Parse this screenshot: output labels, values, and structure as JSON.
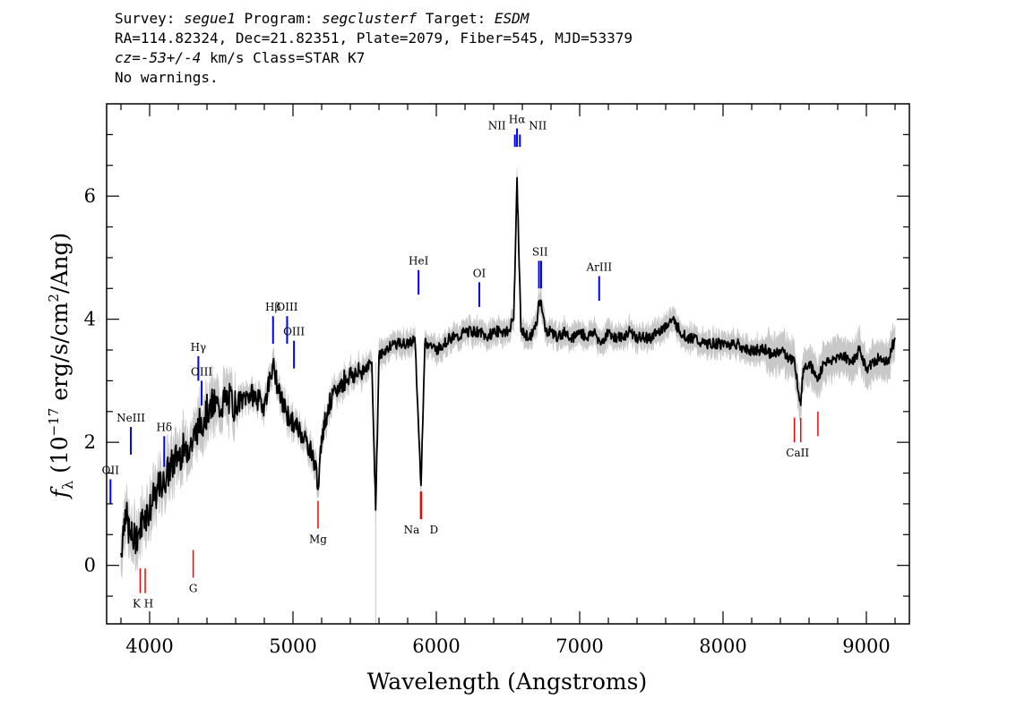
{
  "header": {
    "line1": {
      "survey_label": "Survey: ",
      "survey": "segue1",
      "program_label": " Program: ",
      "program": "segclusterf",
      "target_label": " Target: ",
      "target": "ESDM"
    },
    "line2": "RA=114.82324, Dec=21.82351, Plate=2079, Fiber=545, MJD=53379",
    "line3": {
      "cz": "cz=-53+/-4",
      "rest": " km/s Class=STAR K7"
    },
    "line4": "No warnings."
  },
  "chart_data": {
    "type": "line",
    "title": "",
    "xlabel": "Wavelength (Angstroms)",
    "ylabel": "f_λ (10^-17 erg/s/cm^2/Ang)",
    "ylabel_parts": {
      "f": "f",
      "sub": "λ",
      "pre": " (10",
      "exp1": "−17",
      "mid": " erg/s/cm",
      "exp2": "2",
      "post": "/Ang)"
    },
    "xlim": [
      3700,
      9300
    ],
    "ylim": [
      -0.95,
      7.5
    ],
    "x_ticks": [
      4000,
      5000,
      6000,
      7000,
      8000,
      9000
    ],
    "x_tick_labels": [
      "4000",
      "5000",
      "6000",
      "7000",
      "8000",
      "9000"
    ],
    "y_ticks": [
      0,
      2,
      4,
      6
    ],
    "y_tick_labels": [
      "0",
      "2",
      "4",
      "6"
    ],
    "x_minor_step": 200,
    "y_minor_step": 0.5,
    "grid": false,
    "colors": {
      "flux": "#000000",
      "error_band": "#c8c8c8",
      "emission": "#0000ff",
      "absorption": "#ff0000"
    },
    "series": [
      {
        "role": "flux",
        "x": [
          3800,
          3830,
          3860,
          3890,
          3930,
          3960,
          4000,
          4050,
          4100,
          4150,
          4200,
          4250,
          4300,
          4340,
          4380,
          4420,
          4480,
          4550,
          4600,
          4650,
          4700,
          4750,
          4800,
          4861,
          4900,
          4950,
          5000,
          5050,
          5100,
          5150,
          5180,
          5200,
          5250,
          5300,
          5350,
          5400,
          5450,
          5500,
          5550,
          5577,
          5600,
          5650,
          5700,
          5750,
          5800,
          5850,
          5893,
          5920,
          5950,
          6000,
          6050,
          6100,
          6150,
          6200,
          6250,
          6300,
          6350,
          6400,
          6450,
          6500,
          6540,
          6563,
          6590,
          6650,
          6700,
          6716,
          6731,
          6760,
          6800,
          6850,
          6900,
          6950,
          7000,
          7050,
          7100,
          7150,
          7200,
          7250,
          7300,
          7350,
          7400,
          7450,
          7500,
          7550,
          7600,
          7650,
          7700,
          7750,
          7800,
          7850,
          7900,
          7950,
          8000,
          8050,
          8100,
          8150,
          8200,
          8250,
          8300,
          8350,
          8400,
          8450,
          8500,
          8542,
          8560,
          8600,
          8662,
          8700,
          8750,
          8800,
          8850,
          8900,
          8950,
          9000,
          9050,
          9100,
          9150,
          9200
        ],
        "y": [
          0.2,
          0.9,
          0.5,
          0.4,
          0.6,
          0.8,
          0.9,
          1.2,
          1.4,
          1.6,
          1.8,
          1.9,
          2.0,
          2.3,
          2.4,
          2.6,
          2.6,
          2.7,
          2.6,
          2.7,
          2.8,
          2.7,
          2.6,
          3.3,
          2.8,
          2.5,
          2.3,
          2.2,
          2.0,
          1.7,
          1.3,
          2.1,
          2.6,
          2.8,
          3.0,
          3.1,
          3.1,
          3.2,
          3.3,
          0.9,
          3.4,
          3.5,
          3.6,
          3.6,
          3.6,
          3.7,
          1.3,
          3.6,
          3.6,
          3.5,
          3.6,
          3.7,
          3.7,
          3.8,
          3.8,
          3.8,
          3.7,
          3.8,
          3.8,
          3.8,
          4.0,
          6.3,
          3.8,
          3.7,
          3.9,
          4.3,
          4.3,
          3.8,
          3.8,
          3.7,
          3.8,
          3.7,
          3.8,
          3.7,
          3.8,
          3.6,
          3.8,
          3.7,
          3.7,
          3.8,
          3.7,
          3.7,
          3.7,
          3.8,
          3.9,
          4.0,
          3.8,
          3.7,
          3.7,
          3.6,
          3.6,
          3.6,
          3.6,
          3.6,
          3.6,
          3.5,
          3.5,
          3.5,
          3.5,
          3.4,
          3.5,
          3.4,
          3.3,
          2.6,
          3.2,
          3.3,
          3.0,
          3.3,
          3.3,
          3.4,
          3.4,
          3.3,
          3.5,
          3.2,
          3.3,
          3.4,
          3.3,
          3.7
        ]
      }
    ],
    "emission_lines": [
      {
        "label": "OII",
        "x": 3727,
        "y0": 1.0,
        "y1": 1.4
      },
      {
        "label": "NeIII",
        "x": 3869,
        "y0": 1.8,
        "y1": 2.25
      },
      {
        "label": "Hδ",
        "x": 4102,
        "y0": 1.6,
        "y1": 2.1
      },
      {
        "label": "Hγ",
        "x": 4340,
        "y0": 3.0,
        "y1": 3.4
      },
      {
        "label": "OIII",
        "x": 4363,
        "y0": 2.6,
        "y1": 3.0
      },
      {
        "label": "Hβ",
        "x": 4861,
        "y0": 3.6,
        "y1": 4.05
      },
      {
        "label": "OIII",
        "x": 4959,
        "y0": 3.6,
        "y1": 4.05
      },
      {
        "label": "OIII",
        "x": 5007,
        "y0": 3.2,
        "y1": 3.65
      },
      {
        "label": "HeI",
        "x": 5876,
        "y0": 4.4,
        "y1": 4.8
      },
      {
        "label": "OI",
        "x": 6300,
        "y0": 4.2,
        "y1": 4.6
      },
      {
        "label": "NII",
        "x": 6548,
        "y0": 6.8,
        "y1": 7.0
      },
      {
        "label": "Hα",
        "x": 6563,
        "y0": 6.8,
        "y1": 7.1
      },
      {
        "label": "NII",
        "x": 6583,
        "y0": 6.8,
        "y1": 7.0
      },
      {
        "label": "SII",
        "x": 6716,
        "y0": 4.5,
        "y1": 4.95
      },
      {
        "label": "SII",
        "x": 6731,
        "y0": 4.5,
        "y1": 4.95
      },
      {
        "label": "ArIII",
        "x": 7136,
        "y0": 4.3,
        "y1": 4.7
      }
    ],
    "absorption_lines": [
      {
        "label": "K",
        "x": 3934,
        "y0": -0.45,
        "y1": -0.05
      },
      {
        "label": "H",
        "x": 3969,
        "y0": -0.45,
        "y1": -0.05
      },
      {
        "label": "G",
        "x": 4304,
        "y0": -0.2,
        "y1": 0.25
      },
      {
        "label": "Mg",
        "x": 5175,
        "y0": 0.6,
        "y1": 1.05
      },
      {
        "label": "Na",
        "x": 5890,
        "y0": 0.75,
        "y1": 1.2
      },
      {
        "label": "D",
        "x": 5896,
        "y0": 0.75,
        "y1": 1.2
      },
      {
        "label": "CaII",
        "x": 8498,
        "y0": 2.0,
        "y1": 2.4
      },
      {
        "label": "CaII",
        "x": 8542,
        "y0": 2.0,
        "y1": 2.4
      },
      {
        "label": "CaII",
        "x": 8662,
        "y0": 2.1,
        "y1": 2.5
      }
    ]
  }
}
